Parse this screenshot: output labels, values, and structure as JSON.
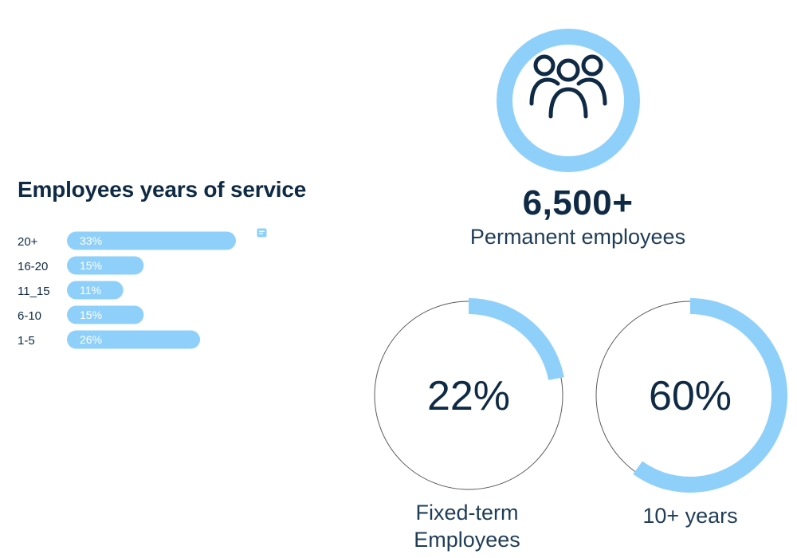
{
  "chart_data": [
    {
      "type": "bar",
      "orientation": "horizontal",
      "title": "Employees years of service",
      "categories": [
        "20+",
        "16-20",
        "11_15",
        "6-10",
        "1-5"
      ],
      "values": [
        33,
        15,
        11,
        15,
        26
      ],
      "value_labels": [
        "33%",
        "15%",
        "11%",
        "15%",
        "26%"
      ],
      "xlim": [
        0,
        33
      ],
      "grid": false,
      "bar_color": "#8fd0fb"
    },
    {
      "type": "pie",
      "variant": "donut",
      "center_label": "22%",
      "label": "Fixed-term Employees",
      "label_lines": [
        "Fixed-term",
        "Employees"
      ],
      "value": 22,
      "total": 100,
      "fill_color": "#8fd0fb",
      "track_color": "#5a5a5a"
    },
    {
      "type": "pie",
      "variant": "donut",
      "center_label": "60%",
      "label": "10+ years",
      "value": 60,
      "total": 100,
      "fill_color": "#8fd0fb",
      "track_color": "#5a5a5a"
    }
  ],
  "headline": {
    "value": "6,500+",
    "label": "Permanent employees",
    "icon": "people-group-icon",
    "ring_color": "#8fd0fb"
  },
  "colors": {
    "text": "#0f2a44",
    "accent": "#8fd0fb"
  }
}
